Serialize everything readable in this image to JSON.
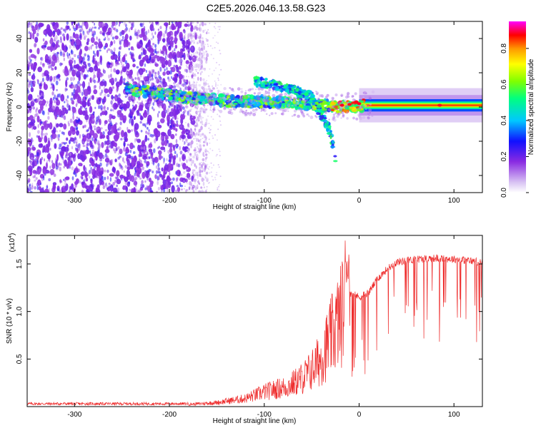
{
  "page_title": "C2E5.2026.046.13.58.G23",
  "chart_data": [
    {
      "type": "heatmap",
      "title": "C2E5.2026.046.13.58.G23",
      "xlabel": "Height of straight line (km)",
      "ylabel": "Frequency (Hz)",
      "xlim": [
        -350,
        130
      ],
      "ylim": [
        -50,
        50
      ],
      "x_ticks": [
        -300,
        -200,
        -100,
        0,
        100
      ],
      "x_tick_labels": [
        "-300",
        "-200",
        "-100",
        "0",
        "100"
      ],
      "y_ticks": [
        -40,
        -20,
        0,
        20,
        40
      ],
      "y_tick_labels": [
        "-40",
        "-20",
        "0",
        "20",
        "40"
      ],
      "colorbar": {
        "label": "Normalized spectral amplitude",
        "range": [
          0,
          0.95
        ],
        "ticks": [
          0.0,
          0.2,
          0.4,
          0.6,
          0.8
        ],
        "tick_labels": [
          "0.0",
          "0.2",
          "0.4",
          "0.6",
          "0.8"
        ],
        "colors": [
          "#ffffff",
          "#c9a3ee",
          "#7a1fe0",
          "#1010ff",
          "#00c8ff",
          "#00ff80",
          "#80ff00",
          "#ffff00",
          "#ff9900",
          "#ff0000",
          "#ff00ff"
        ]
      },
      "features": [
        {
          "name": "broadband noise",
          "x_range": [
            -350,
            -175
          ],
          "y_range": [
            -50,
            50
          ],
          "level": 0.3
        },
        {
          "name": "signal trace",
          "x": [
            -240,
            -210,
            -180,
            -150,
            -120,
            -100,
            -80,
            -60,
            -40,
            -20,
            0,
            50,
            130
          ],
          "y": [
            10,
            8,
            5,
            4,
            3,
            3,
            3,
            2,
            1,
            0,
            1,
            1,
            1
          ],
          "level": 0.7
        },
        {
          "name": "branch",
          "x": [
            -110,
            -90,
            -70,
            -50,
            -30,
            -25
          ],
          "y": [
            15,
            13,
            10,
            6,
            -15,
            -30
          ],
          "level": 0.5
        }
      ]
    },
    {
      "type": "line",
      "xlabel": "Height of straight line (km)",
      "ylabel": "SNR (10 * v/v)",
      "y_multiplier": "(x10",
      "y_multiplier_exp": "4",
      "y_multiplier_close": ")",
      "xlim": [
        -350,
        130
      ],
      "ylim": [
        0,
        1.8
      ],
      "x_ticks": [
        -300,
        -200,
        -100,
        0,
        100
      ],
      "x_tick_labels": [
        "-300",
        "-200",
        "-100",
        "0",
        "100"
      ],
      "y_ticks": [
        0.5,
        1.0,
        1.5
      ],
      "y_tick_labels": [
        "0.5",
        "1.0",
        "1.5"
      ],
      "color": "#ee2a2a",
      "series": [
        {
          "name": "SNR",
          "x": [
            -350,
            -250,
            -175,
            -150,
            -120,
            -100,
            -75,
            -60,
            -50,
            -40,
            -30,
            -20,
            -15,
            -10,
            0,
            10,
            20,
            30,
            40,
            60,
            80,
            100,
            130
          ],
          "y": [
            0.03,
            0.03,
            0.03,
            0.05,
            0.1,
            0.18,
            0.25,
            0.35,
            0.45,
            0.6,
            0.85,
            1.1,
            1.3,
            1.2,
            1.15,
            1.2,
            1.35,
            1.45,
            1.52,
            1.55,
            1.56,
            1.55,
            1.52
          ]
        }
      ]
    }
  ]
}
